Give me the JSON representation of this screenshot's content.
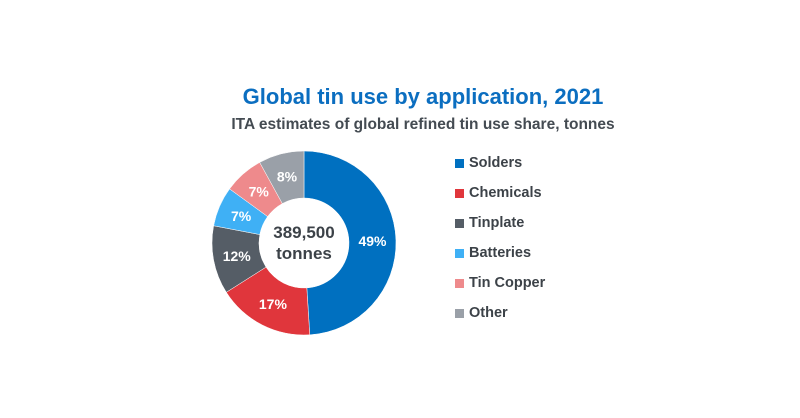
{
  "chart_data": {
    "type": "pie",
    "variant": "donut",
    "title": "Global tin use by application, 2021",
    "subtitle": "ITA estimates of global refined tin use share, tonnes",
    "center_label": [
      "389,500",
      "tonnes"
    ],
    "categories": [
      "Solders",
      "Chemicals",
      "Tinplate",
      "Batteries",
      "Tin Copper",
      "Other"
    ],
    "values": [
      49,
      17,
      12,
      7,
      7,
      8
    ],
    "labels": [
      "49%",
      "17%",
      "12%",
      "7%",
      "7%",
      "8%"
    ],
    "colors": [
      "#0070c0",
      "#e0363c",
      "#555d66",
      "#3fb0f5",
      "#ee8a8c",
      "#9aa0a8"
    ],
    "legend_position": "right"
  }
}
